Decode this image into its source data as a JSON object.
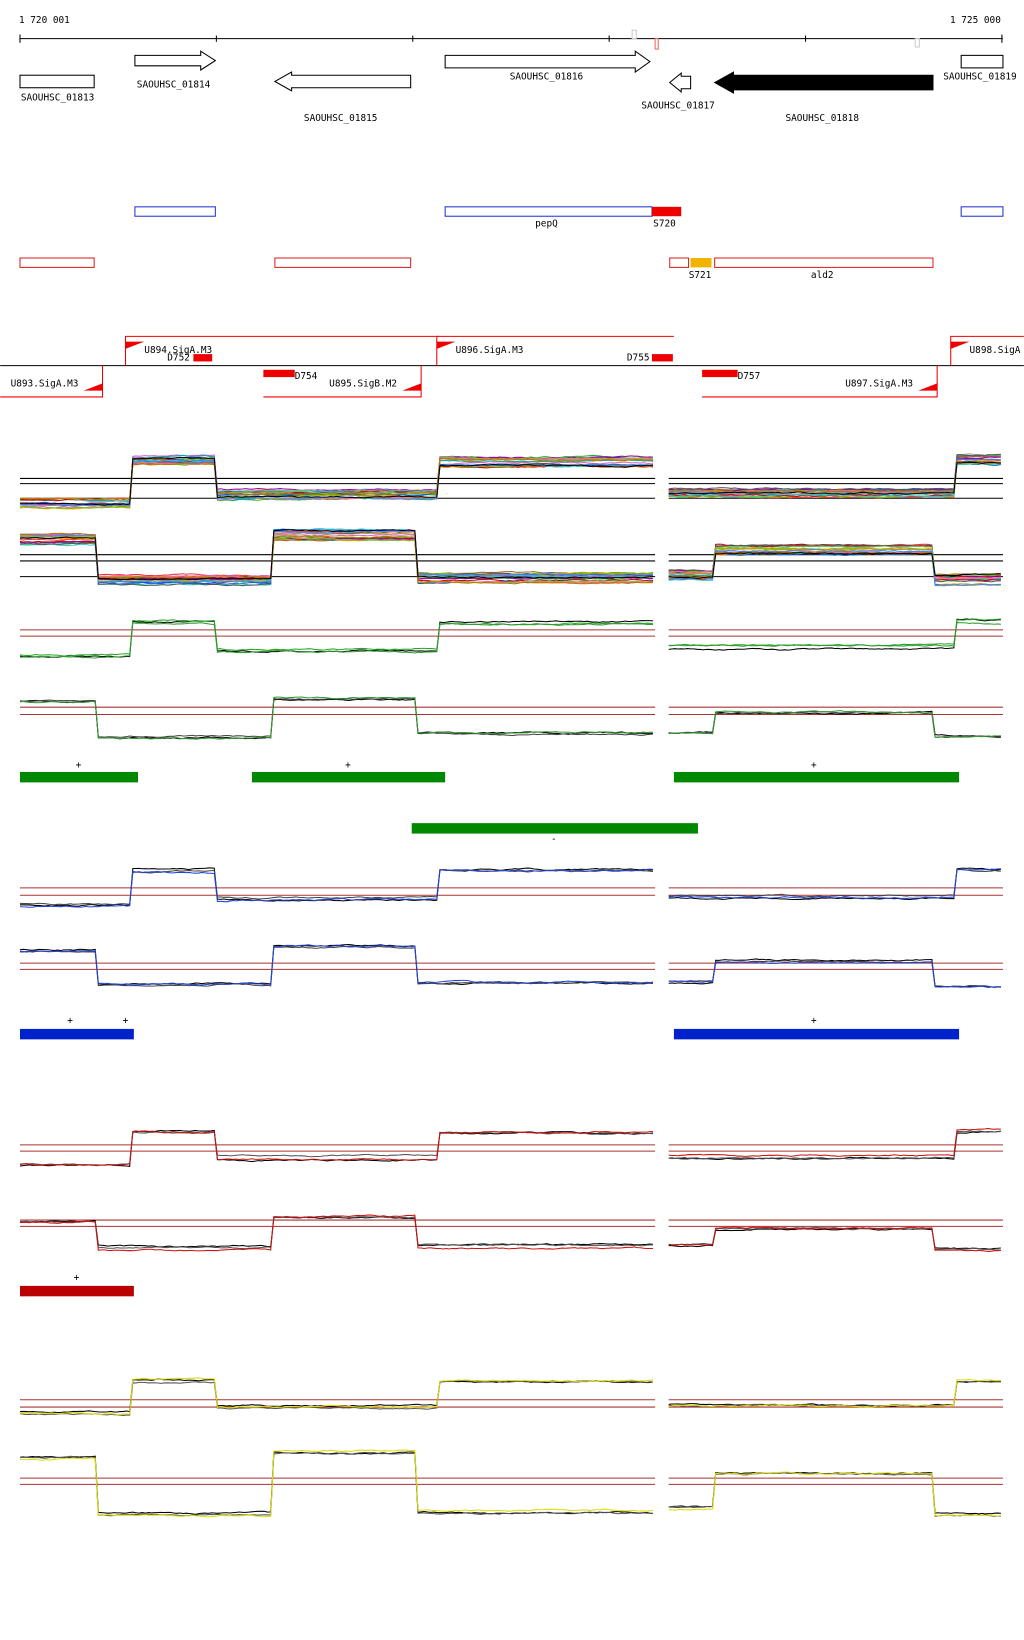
{
  "ruler": {
    "start": "1 720 001",
    "end": "1 725 000"
  },
  "genes": [
    "SAOUHSC_01813",
    "SAOUHSC_01814",
    "SAOUHSC_01815",
    "SAOUHSC_01816",
    "SAOUHSC_01817",
    "SAOUHSC_01818",
    "SAOUHSC_01819"
  ],
  "features": {
    "blue": [
      "pepQ",
      "S720"
    ],
    "red": [
      "S721",
      "ald2"
    ]
  },
  "promoters": {
    "upper": [
      "U894.SigA.M3",
      "D752",
      "U896.SigA.M3",
      "D755",
      "U898.SigA"
    ],
    "lower": [
      "U893.SigA.M3",
      "D754",
      "U895.SigB.M2",
      "D757",
      "U897.SigA.M3"
    ]
  },
  "segments": {
    "green": {
      "plus": [
        "+",
        "+",
        "+"
      ],
      "minus": [
        "-"
      ]
    },
    "blue": {
      "plus": [
        "+",
        "+",
        "+"
      ]
    },
    "red": {
      "plus": [
        "+"
      ]
    }
  }
}
